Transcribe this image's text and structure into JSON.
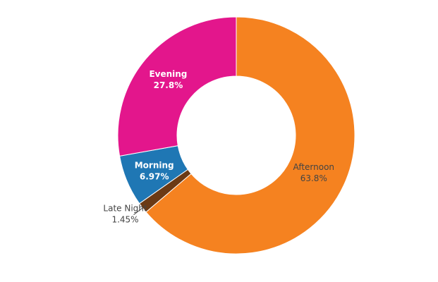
{
  "chart_data": {
    "type": "pie",
    "hole": 0.5,
    "sort": "clockwise from top",
    "slices": [
      {
        "label": "Afternoon",
        "percent_text": "63.8%",
        "value": 63.8,
        "color": "#f58220",
        "label_color": "#444444"
      },
      {
        "label": "Late Night",
        "percent_text": "1.45%",
        "value": 1.45,
        "color": "#6b3a15",
        "label_color": "#444444"
      },
      {
        "label": "Morning",
        "percent_text": "6.97%",
        "value": 6.97,
        "color": "#1f77b4",
        "label_color": "#ffffff"
      },
      {
        "label": "Evening",
        "percent_text": "27.8%",
        "value": 27.8,
        "color": "#e3168c",
        "label_color": "#ffffff"
      }
    ]
  }
}
